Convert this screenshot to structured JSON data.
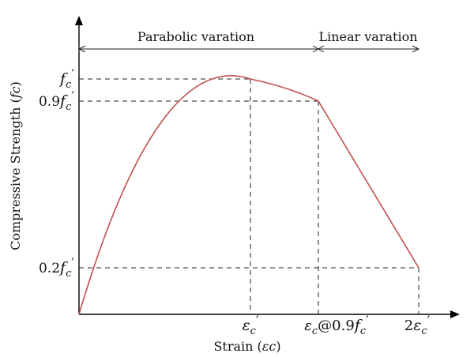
{
  "colors": {
    "curve": "#c0504d",
    "axis": "#000000",
    "guides": "#222222",
    "background": "#ffffff"
  },
  "regions": {
    "parabolic": "Parabolic varation",
    "linear": "Linear varation"
  },
  "axes": {
    "y_label_text": "Compressive Strength (",
    "y_label_sym": "fc",
    "y_label_close": ")",
    "x_label_text": "Strain (",
    "x_label_sym": "εc",
    "x_label_close": ")"
  },
  "y_ticks": {
    "fc_sym": "f",
    "fc_sub": "c",
    "fc_prime": "′",
    "nine_coef": "0.9",
    "two_coef": "0.2"
  },
  "x_ticks": {
    "eps_sym": "ε",
    "eps_sub": "c",
    "eps_prime": "′",
    "at_text": "@0.9",
    "f_sym": "f",
    "two_coef": "2"
  },
  "chart_data": {
    "type": "line",
    "points": [
      {
        "strain": 0,
        "stress_ratio": 0.0
      },
      {
        "strain": "εc′",
        "stress_ratio": 1.0
      },
      {
        "strain": "εc@0.9fc′",
        "stress_ratio": 0.9
      },
      {
        "strain": "2εc′",
        "stress_ratio": 0.2
      }
    ]
  }
}
